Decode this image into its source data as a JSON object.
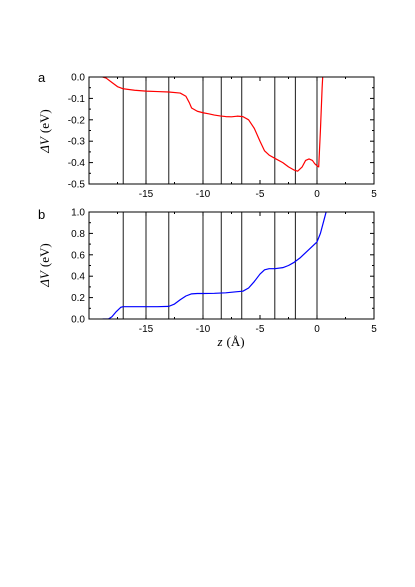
{
  "chart_data": [
    {
      "panel_label": "a",
      "type": "line",
      "xlabel": "",
      "ylabel": "ΔV (eV)",
      "ylabel_parts": {
        "symbol": "ΔV",
        "unit": "(eV)"
      },
      "xlim": [
        -20,
        5
      ],
      "ylim": [
        -0.5,
        0.0
      ],
      "xticks": [
        -15,
        -10,
        -5,
        0,
        5
      ],
      "xtick_labels": [
        "-15",
        "-10",
        "-5",
        "0",
        "5"
      ],
      "yticks": [
        0.0,
        -0.1,
        -0.2,
        -0.3,
        -0.4,
        -0.5
      ],
      "ytick_labels": [
        "0.0",
        "-0.1",
        "-0.2",
        "-0.3",
        "-0.4",
        "-0.5"
      ],
      "grid": false,
      "vertical_lines": [
        -17.0,
        -15.0,
        -13.0,
        -10.0,
        -8.4,
        -6.6,
        -3.7,
        -1.9,
        0.0
      ],
      "series": [
        {
          "color": "#ff0000",
          "x": [
            -18.8,
            -18.5,
            -18.0,
            -17.5,
            -17.0,
            -16.0,
            -15.0,
            -14.0,
            -13.0,
            -12.0,
            -11.5,
            -11.2,
            -11.0,
            -10.5,
            -10.0,
            -9.5,
            -9.0,
            -8.5,
            -8.0,
            -7.5,
            -7.0,
            -6.5,
            -6.0,
            -5.5,
            -5.0,
            -4.6,
            -4.2,
            -3.7,
            -3.0,
            -2.5,
            -2.0,
            -1.7,
            -1.3,
            -1.0,
            -0.7,
            -0.4,
            -0.2,
            0.0,
            0.15,
            0.3,
            0.45,
            0.5
          ],
          "y": [
            0.0,
            -0.005,
            -0.025,
            -0.045,
            -0.055,
            -0.062,
            -0.066,
            -0.068,
            -0.07,
            -0.075,
            -0.09,
            -0.12,
            -0.145,
            -0.16,
            -0.167,
            -0.172,
            -0.178,
            -0.182,
            -0.185,
            -0.186,
            -0.183,
            -0.185,
            -0.2,
            -0.24,
            -0.3,
            -0.345,
            -0.365,
            -0.38,
            -0.4,
            -0.42,
            -0.435,
            -0.44,
            -0.42,
            -0.39,
            -0.383,
            -0.39,
            -0.405,
            -0.415,
            -0.42,
            -0.25,
            -0.05,
            0.0
          ]
        }
      ]
    },
    {
      "panel_label": "b",
      "type": "line",
      "xlabel": "z (Å)",
      "xlabel_parts": {
        "symbol": "z",
        "unit": "(Å)"
      },
      "ylabel": "ΔV (eV)",
      "ylabel_parts": {
        "symbol": "ΔV",
        "unit": "(eV)"
      },
      "xlim": [
        -20,
        5
      ],
      "ylim": [
        0.0,
        1.0
      ],
      "xticks": [
        -15,
        -10,
        -5,
        0,
        5
      ],
      "xtick_labels": [
        "-15",
        "-10",
        "-5",
        "0",
        "5"
      ],
      "yticks": [
        0.0,
        0.2,
        0.4,
        0.6,
        0.8,
        1.0
      ],
      "ytick_labels": [
        "0.0",
        "0.2",
        "0.4",
        "0.6",
        "0.8",
        "1.0"
      ],
      "grid": false,
      "vertical_lines": [
        -17.0,
        -15.0,
        -13.0,
        -10.0,
        -8.4,
        -6.6,
        -3.7,
        -1.9,
        0.0
      ],
      "series": [
        {
          "color": "#0000ff",
          "x": [
            -18.8,
            -18.3,
            -18.0,
            -17.6,
            -17.2,
            -17.0,
            -16.0,
            -15.0,
            -14.0,
            -13.0,
            -12.5,
            -12.0,
            -11.5,
            -11.0,
            -10.5,
            -10.0,
            -9.0,
            -8.0,
            -7.0,
            -6.5,
            -6.0,
            -5.5,
            -5.0,
            -4.6,
            -4.2,
            -3.7,
            -3.0,
            -2.5,
            -2.0,
            -1.5,
            -1.0,
            -0.5,
            0.0,
            0.3,
            0.6,
            0.8
          ],
          "y": [
            0.0,
            0.0,
            0.02,
            0.07,
            0.11,
            0.115,
            0.115,
            0.115,
            0.115,
            0.118,
            0.14,
            0.18,
            0.215,
            0.235,
            0.238,
            0.238,
            0.24,
            0.245,
            0.255,
            0.26,
            0.29,
            0.35,
            0.42,
            0.46,
            0.47,
            0.47,
            0.48,
            0.5,
            0.53,
            0.57,
            0.62,
            0.67,
            0.72,
            0.8,
            0.92,
            1.0
          ]
        }
      ]
    }
  ]
}
